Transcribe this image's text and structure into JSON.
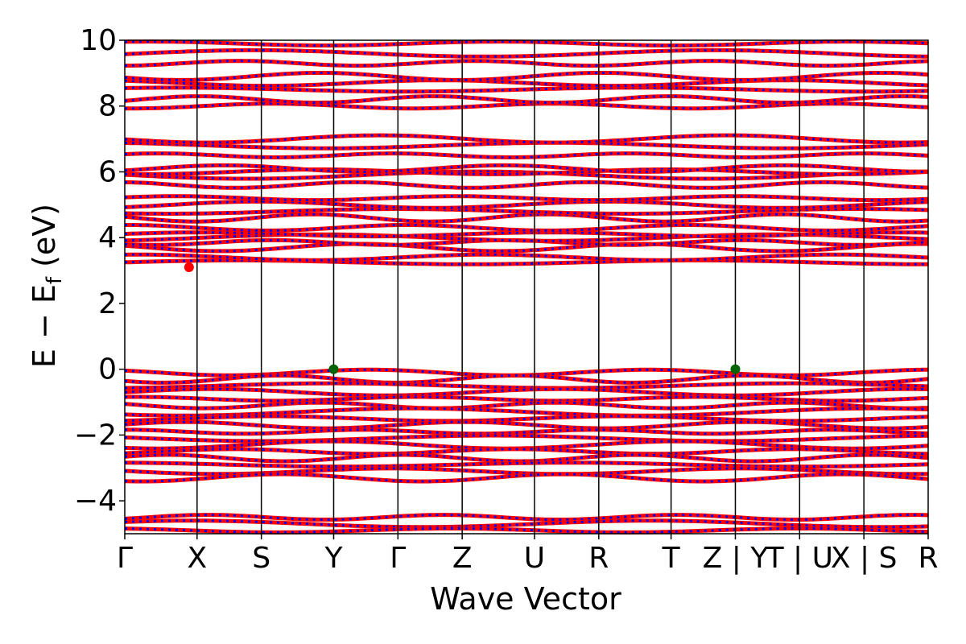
{
  "chart_data": {
    "type": "line",
    "xlabel": "Wave Vector",
    "ylabel": "E − E",
    "ylabel_sub": "f",
    "ylabel_unit": " (eV)",
    "ylim": [
      -5,
      10
    ],
    "yticks": [
      -4,
      -2,
      0,
      2,
      4,
      6,
      8,
      10
    ],
    "ytick_labels": [
      "−4",
      "−2",
      "0",
      "2",
      "4",
      "6",
      "8",
      "10"
    ],
    "kpath_positions": [
      0,
      0.9,
      1.7,
      2.6,
      3.4,
      4.2,
      5.1,
      5.9,
      6.8,
      7.6,
      8.4,
      9.2,
      10.0
    ],
    "kpath_labels": [
      "Γ",
      "X",
      "S",
      "Y",
      "Γ",
      "Z",
      "U",
      "R",
      "T",
      "Z | Y",
      "T | U",
      "X | S",
      "R"
    ],
    "series_colors": {
      "spin_up": "#ff0000",
      "spin_down": "#0000ff"
    },
    "cbm_marker": {
      "x": 0.8,
      "y": 3.1,
      "color": "#ff0000"
    },
    "vbm_markers": [
      {
        "x": 2.6,
        "y": 0.0,
        "color": "#006400"
      },
      {
        "x": 7.6,
        "y": 0.0,
        "color": "#006400"
      }
    ],
    "conduction_band_levels": [
      3.25,
      3.4,
      3.7,
      3.85,
      4.0,
      4.1,
      4.3,
      4.6,
      4.8,
      5.0,
      5.2,
      5.6,
      5.9,
      6.0,
      6.1,
      6.5,
      6.8,
      7.0,
      8.0,
      8.2,
      8.5,
      8.7,
      8.9,
      9.3,
      9.6,
      9.9
    ],
    "valence_band_levels": [
      -0.1,
      -0.3,
      -0.5,
      -0.7,
      -0.9,
      -1.1,
      -1.3,
      -1.5,
      -1.7,
      -1.9,
      -2.1,
      -2.3,
      -2.5,
      -2.7,
      -2.9,
      -3.1,
      -3.3,
      -4.5,
      -4.7,
      -4.9
    ]
  }
}
